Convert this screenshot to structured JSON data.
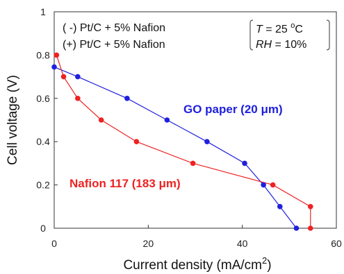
{
  "chart_data": {
    "type": "line",
    "xlabel": "Current density (mA/cm",
    "xlabel_sup": "2",
    "xlabel_tail": ")",
    "ylabel": "Cell voltage (V)",
    "xlim": [
      0,
      60
    ],
    "ylim": [
      0,
      1
    ],
    "x_ticks": [
      "0",
      "20",
      "40",
      "60"
    ],
    "y_ticks": [
      "0",
      "0.2",
      "0.4",
      "0.6",
      "0.8",
      "1"
    ],
    "grid": false,
    "legend_lines": [
      "( -) Pt/C + 5% Nafion",
      "(+) Pt/C + 5% Nafion"
    ],
    "conditions": {
      "t_var": "T",
      "t_value": " = 25 ",
      "t_sup": "o",
      "t_unit": "C",
      "rh_var": "RH",
      "rh_value": " = 10%"
    },
    "series": [
      {
        "name": "GO paper (20 μm)",
        "color": "#2020dd",
        "x": [
          0,
          5,
          15.5,
          24,
          32.5,
          40.5,
          44.5,
          48,
          51.5
        ],
        "y": [
          0.745,
          0.7,
          0.6,
          0.5,
          0.4,
          0.3,
          0.2,
          0.1,
          0.0
        ]
      },
      {
        "name": "Nafion 117 (183 μm)",
        "color": "#ee2222",
        "x": [
          0.5,
          2,
          5,
          10,
          17.5,
          29.5,
          46.5,
          54.5,
          54.5
        ],
        "y": [
          0.8,
          0.7,
          0.6,
          0.5,
          0.4,
          0.3,
          0.2,
          0.1,
          0.0
        ]
      }
    ]
  }
}
